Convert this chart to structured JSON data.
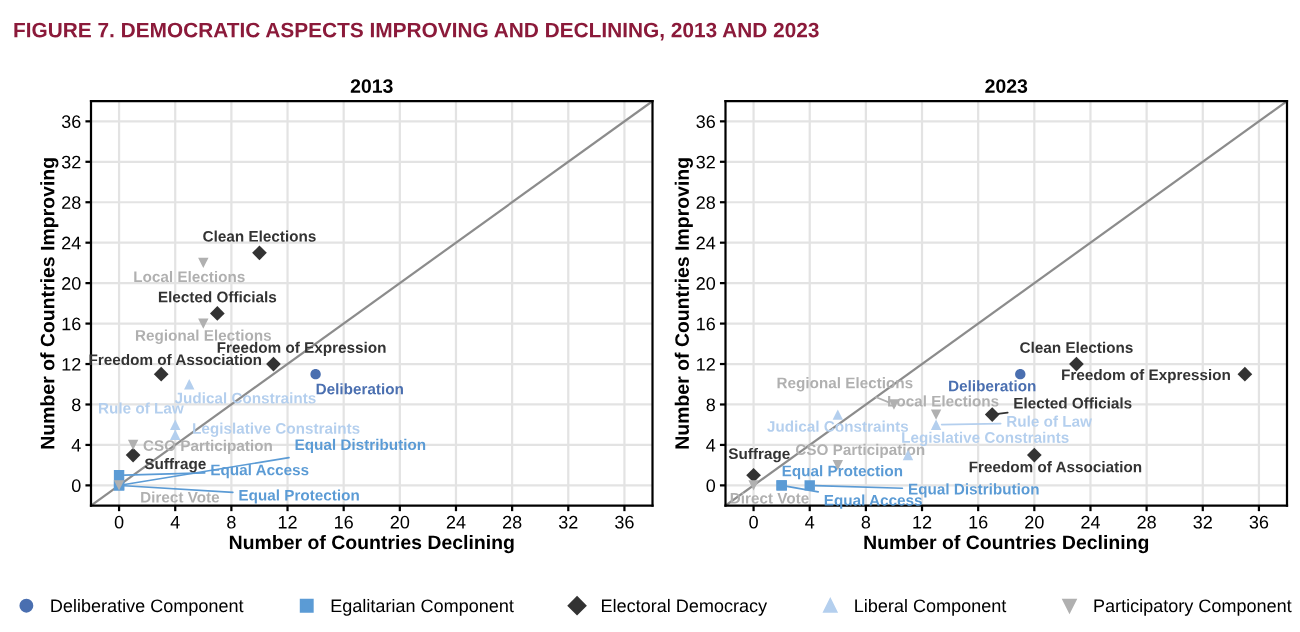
{
  "chart_data": [
    {
      "type": "scatter",
      "title": "2013",
      "xlabel": "Number of Countries Declining",
      "ylabel": "Number of Countries Improving",
      "annotations": [
        "FIGURE 7. DEMOCRATIC ASPECTS IMPROVING AND DECLINING, 2013 AND 2023"
      ],
      "xlim": [
        -2,
        38
      ],
      "ylim": [
        -2,
        38
      ],
      "xticks": [
        0,
        4,
        8,
        12,
        16,
        20,
        24,
        28,
        32,
        36
      ],
      "yticks": [
        0,
        4,
        8,
        12,
        16,
        20,
        24,
        28,
        32,
        36
      ],
      "grid": true,
      "legend": "bottom",
      "series": [
        {
          "type": "line",
          "color": "#8c8c8c",
          "x": [
            -2,
            38
          ],
          "values": [
            -2,
            38
          ]
        },
        {
          "name": "Deliberative Component",
          "color": "#4a6fb0",
          "marker": "circle",
          "x": [
            14
          ],
          "values": [
            11
          ],
          "value_labels": [
            "Deliberation"
          ]
        },
        {
          "name": "Egalitarian Component",
          "color": "#5b9bd5",
          "marker": "square",
          "x": [
            0,
            0,
            0
          ],
          "values": [
            0,
            1,
            0
          ],
          "value_labels": [
            "Equal Distribution",
            "Equal Access",
            "Equal Protection"
          ]
        },
        {
          "name": "Electoral Democracy",
          "color": "#333333",
          "marker": "diamond",
          "x": [
            10,
            7,
            11,
            3,
            1
          ],
          "values": [
            23,
            17,
            12,
            11,
            3
          ],
          "value_labels": [
            "Clean Elections",
            "Elected Officials",
            "Freedom of Expression",
            "Freedom of Association",
            "Suffrage"
          ]
        },
        {
          "name": "Liberal Component",
          "color": "#b4cfee",
          "marker": "triangle",
          "x": [
            5,
            4,
            4
          ],
          "values": [
            10,
            6,
            5
          ],
          "value_labels": [
            "Judical Constraints",
            "Legislative Constraints",
            "Rule of Law"
          ]
        },
        {
          "name": "Participatory Component",
          "color": "#b0b0b0",
          "marker": "triangle_down",
          "x": [
            6,
            6,
            1,
            0
          ],
          "values": [
            22,
            16,
            4,
            0
          ],
          "value_labels": [
            "Local Elections",
            "Regional Elections",
            "CSO Participation",
            "Direct Vote"
          ]
        }
      ]
    },
    {
      "type": "scatter",
      "title": "2023",
      "xlabel": "Number of Countries Declining",
      "ylabel": "Number of Countries Improving",
      "xlim": [
        -2,
        38
      ],
      "ylim": [
        -2,
        38
      ],
      "xticks": [
        0,
        4,
        8,
        12,
        16,
        20,
        24,
        28,
        32,
        36
      ],
      "yticks": [
        0,
        4,
        8,
        12,
        16,
        20,
        24,
        28,
        32,
        36
      ],
      "grid": true,
      "series": [
        {
          "type": "line",
          "color": "#8c8c8c",
          "x": [
            -2,
            38
          ],
          "values": [
            -2,
            38
          ]
        },
        {
          "name": "Deliberative Component",
          "color": "#4a6fb0",
          "marker": "circle",
          "x": [
            19
          ],
          "values": [
            11
          ],
          "value_labels": [
            "Deliberation"
          ]
        },
        {
          "name": "Egalitarian Component",
          "color": "#5b9bd5",
          "marker": "square",
          "x": [
            2,
            2,
            4
          ],
          "values": [
            0,
            0,
            0
          ],
          "value_labels": [
            "Equal Protection",
            "Equal Access",
            "Equal Distribution"
          ]
        },
        {
          "name": "Electoral Democracy",
          "color": "#333333",
          "marker": "diamond",
          "x": [
            23,
            35,
            17,
            20,
            0
          ],
          "values": [
            12,
            11,
            7,
            3,
            1
          ],
          "value_labels": [
            "Clean Elections",
            "Freedom of Expression",
            "Elected Officials",
            "Freedom of Association",
            "Suffrage"
          ]
        },
        {
          "name": "Liberal Component",
          "color": "#b4cfee",
          "marker": "triangle",
          "x": [
            6,
            13,
            11
          ],
          "values": [
            7,
            6,
            3
          ],
          "value_labels": [
            "Judical Constraints",
            "Rule of Law",
            "Legislative Constraints"
          ]
        },
        {
          "name": "Participatory Component",
          "color": "#b0b0b0",
          "marker": "triangle_down",
          "x": [
            10,
            13,
            6,
            0
          ],
          "values": [
            8,
            7,
            2,
            0
          ],
          "value_labels": [
            "Regional Elections",
            "Local Elections",
            "CSO Participation",
            "Direct Vote"
          ]
        }
      ]
    }
  ]
}
